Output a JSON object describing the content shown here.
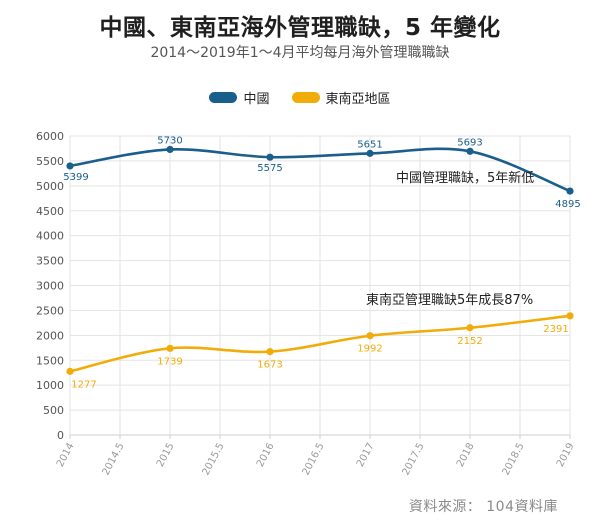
{
  "title": "中國、東南亞海外管理職缺，5 年變化",
  "subtitle": "2014～2019年1～4月平均每月海外管理職職缺",
  "source": "資料來源： 104資料庫",
  "colors": {
    "china": "#1a5e8c",
    "sea": "#f2ac0a",
    "grid": "#e3e3e3"
  },
  "chart_data": {
    "type": "line",
    "x": [
      2014,
      2015,
      2016,
      2017,
      2018,
      2019
    ],
    "x_ticks": [
      "2014",
      "2014.5",
      "2015",
      "2015.5",
      "2016",
      "2016.5",
      "2017",
      "2017.5",
      "2018",
      "2018.5",
      "2019"
    ],
    "y_ticks": [
      "0",
      "500",
      "1000",
      "1500",
      "2000",
      "2500",
      "3000",
      "3500",
      "4000",
      "4500",
      "5000",
      "5500",
      "6000"
    ],
    "ylim": [
      0,
      6000
    ],
    "xlim": [
      2014,
      2019
    ],
    "grid": true,
    "legend_position": "top-center",
    "series": [
      {
        "name": "中國",
        "values": [
          5399,
          5730,
          5575,
          5651,
          5693,
          4895
        ]
      },
      {
        "name": "東南亞地區",
        "values": [
          1277,
          1739,
          1673,
          1992,
          2152,
          2391
        ]
      }
    ],
    "annotations": [
      "中國管理職缺，5年新低",
      "東南亞管理職缺5年成長87%"
    ]
  }
}
